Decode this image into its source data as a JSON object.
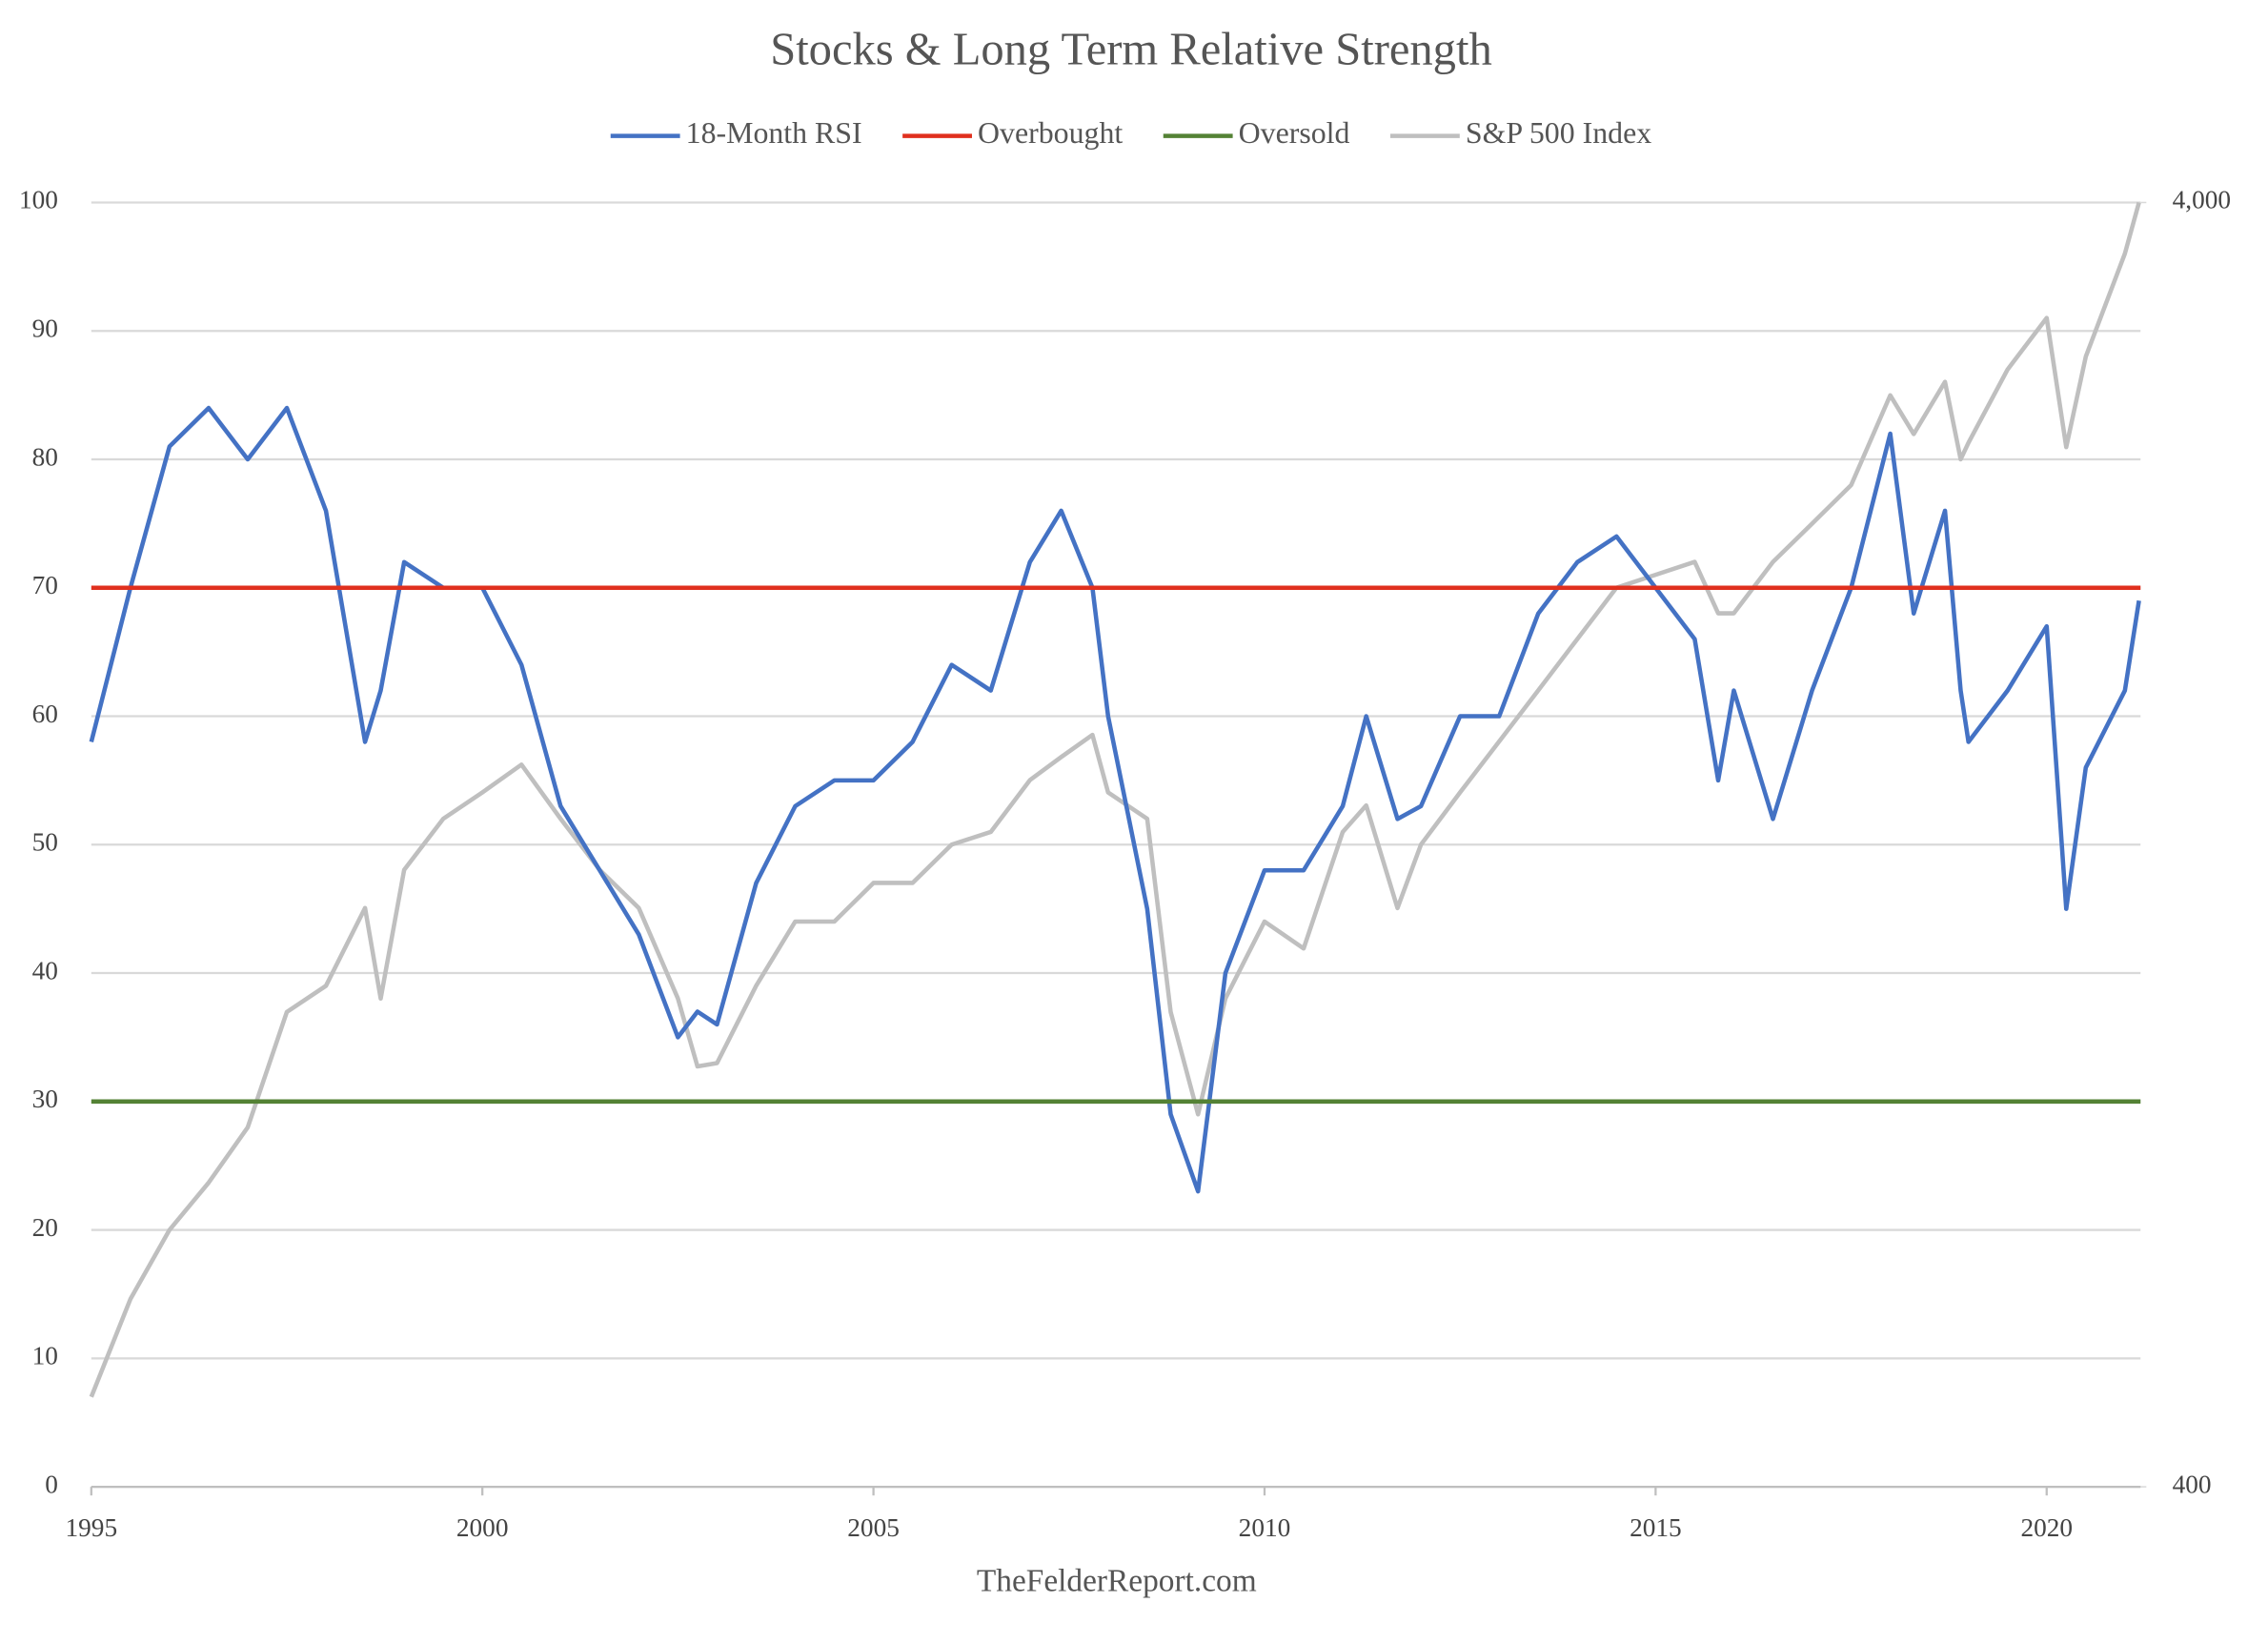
{
  "chart_data": {
    "type": "line",
    "title": "Stocks & Long Term Relative Strength",
    "source": "TheFelderReport.com",
    "x": [
      1995,
      1995.5,
      1996,
      1996.5,
      1997,
      1997.5,
      1998,
      1998.5,
      1998.7,
      1999,
      1999.5,
      2000,
      2000.5,
      2001,
      2001.5,
      2002,
      2002.5,
      2002.75,
      2003,
      2003.5,
      2004,
      2004.5,
      2005,
      2005.5,
      2006,
      2006.5,
      2007,
      2007.4,
      2007.8,
      2008,
      2008.5,
      2008.8,
      2009.15,
      2009.5,
      2010,
      2010.5,
      2011,
      2011.3,
      2011.7,
      2012,
      2012.5,
      2013,
      2013.5,
      2014,
      2014.5,
      2015,
      2015.5,
      2015.8,
      2016,
      2016.5,
      2017,
      2017.5,
      2018,
      2018.3,
      2018.7,
      2018.9,
      2019,
      2019.5,
      2020,
      2020.25,
      2020.5,
      2021,
      2021.18
    ],
    "xlim": [
      1995,
      2021.2
    ],
    "xticks": [
      1995,
      2000,
      2005,
      2010,
      2015,
      2020
    ],
    "ylim": [
      0,
      100
    ],
    "yticks": [
      0,
      10,
      20,
      30,
      40,
      50,
      60,
      70,
      80,
      90,
      100
    ],
    "y2lim": [
      400,
      4000
    ],
    "y2ticks": [
      {
        "value": 400,
        "label": "400"
      },
      {
        "value": 4000,
        "label": "4,000"
      }
    ],
    "y2log": true,
    "grid": true,
    "legend": "top",
    "series": [
      {
        "name": "18-Month RSI",
        "color": "#4472c4",
        "values": [
          58,
          70,
          81,
          84,
          80,
          84,
          76,
          58,
          62,
          72,
          70,
          70,
          64,
          53,
          48,
          43,
          35,
          37,
          36,
          47,
          53,
          55,
          55,
          58,
          64,
          62,
          72,
          76,
          70,
          60,
          45,
          29,
          23,
          40,
          48,
          48,
          53,
          60,
          52,
          53,
          60,
          60,
          68,
          72,
          74,
          70,
          66,
          55,
          62,
          52,
          62,
          70,
          82,
          68,
          76,
          62,
          58,
          62,
          67,
          45,
          56,
          62,
          69
        ]
      },
      {
        "name": "Overbought",
        "color": "#e0301e",
        "value": 70
      },
      {
        "name": "Oversold",
        "color": "#548235",
        "value": 30
      },
      {
        "name": "S&P 500 Index",
        "color": "#bfbfbf",
        "axis": "y2",
        "values": [
          470,
          560,
          634,
          690,
          762,
          937,
          982,
          1129,
          960,
          1209,
          1325,
          1389,
          1460,
          1325,
          1209,
          1129,
          960,
          850,
          855,
          982,
          1102,
          1102,
          1181,
          1181,
          1265,
          1294,
          1420,
          1480,
          1540,
          1389,
          1325,
          937,
          780,
          960,
          1102,
          1050,
          1294,
          1357,
          1129,
          1265,
          1389,
          1522,
          1668,
          1829,
          2005,
          2052,
          2100,
          1915,
          1915,
          2100,
          2249,
          2410,
          2831,
          2641,
          2900,
          2524,
          2600,
          2965,
          3252,
          2580,
          3034,
          3650,
          4000
        ]
      }
    ]
  }
}
